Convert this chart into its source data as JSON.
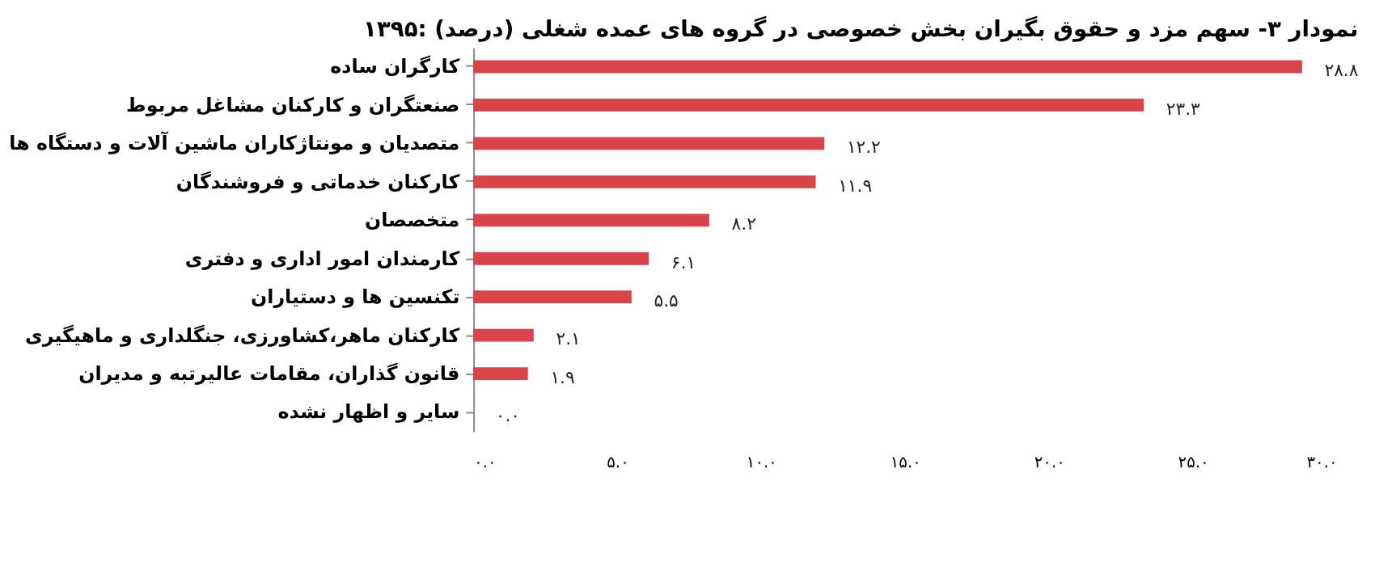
{
  "chart_data": {
    "type": "bar",
    "orientation": "horizontal",
    "title": "نمودار ۳- سهم مزد و حقوق بگیران بخش خصوصی در گروه های عمده شغلی (درصد) :۱۳۹۵",
    "categories": [
      "کارگران ساده",
      "صنعتگران و کارکنان مشاغل مربوط",
      "متصدیان و مونتاژکاران ماشین آلات و دستگاه ها",
      "کارکنان خدماتی و فروشندگان",
      "متخصصان",
      "کارمندان امور اداری و دفتری",
      "تکنسین ها و دستیاران",
      "کارکنان ماهر،کشاورزی، جنگلداری و ماهیگیری",
      "قانون گذاران، مقامات عالیرتبه و مدیران",
      "سایر و اظهار نشده"
    ],
    "values": [
      28.8,
      23.3,
      12.2,
      11.9,
      8.2,
      6.1,
      5.5,
      2.1,
      1.9,
      0.0
    ],
    "value_labels": [
      "۲۸.۸",
      "۲۳.۳",
      "۱۲.۲",
      "۱۱.۹",
      "۸.۲",
      "۶.۱",
      "۵.۵",
      "۲.۱",
      "۱.۹",
      "۰.۰"
    ],
    "color": "#d9434a",
    "xlim": [
      0,
      30
    ],
    "xticks": [
      {
        "value": 0,
        "label": "۰.۰"
      },
      {
        "value": 5,
        "label": "۵.۰"
      },
      {
        "value": 10,
        "label": "۱۰.۰"
      },
      {
        "value": 15,
        "label": "۱۵.۰"
      },
      {
        "value": 20,
        "label": "۲۰.۰"
      },
      {
        "value": 25,
        "label": "۲۵.۰"
      },
      {
        "value": 30,
        "label": "۳۰.۰"
      }
    ],
    "grid": false
  }
}
